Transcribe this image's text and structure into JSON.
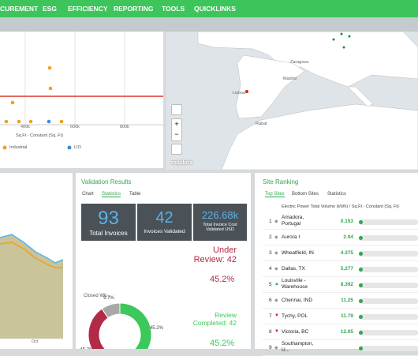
{
  "nav": {
    "items": [
      "CUREMENT",
      "ESG",
      "EFFICIENCY",
      "REPORTING",
      "TOOLS",
      "QUICKLINKS"
    ]
  },
  "scatter_panel": {
    "x_ticks": [
      "400k",
      "600k",
      "800k"
    ],
    "x_axis_label": "Sq.Ft - Constant (Sq. Ft)",
    "legend": [
      "Industrial",
      "LIO"
    ]
  },
  "map": {
    "places": [
      "Zaragoza",
      "Madrid",
      "Lisboa",
      "Rabat"
    ],
    "zoom_in": "+",
    "zoom_out": "−",
    "attribution": "mapbox"
  },
  "area_panel": {
    "x_label": "Oct"
  },
  "validation": {
    "title": "Validation Results",
    "tabs": [
      "Chart",
      "Statistics",
      "Table"
    ],
    "tiles": [
      {
        "value": 93,
        "label": "Total Invoices"
      },
      {
        "value": 42,
        "label": "Invoices Validated"
      },
      {
        "value": "226.68k",
        "label": "Total Invoice Cost Validated USD"
      }
    ],
    "under_review": "Under Review: 42",
    "under_review_pct": "45.2%",
    "review_completed": "Review Completed: 42",
    "review_completed_pct": "45.2%",
    "donut_legend": "Closed Wit...",
    "donut": [
      {
        "value": 45.2,
        "label": "45.2%",
        "color": "#3cc85a"
      },
      {
        "value": 45.2,
        "label": "45.2%",
        "color": "#b22a45"
      },
      {
        "value": 9.7,
        "label": "9.7%",
        "color": "#a8a8a8"
      }
    ]
  },
  "ranking": {
    "title": "Site Ranking",
    "tabs": [
      "Top Sites",
      "Bottom Sites",
      "Statistics"
    ],
    "header": "Electric Power Total Volume (kWh) / Sq.Ft - Constant (Sq. Ft)",
    "rows": [
      {
        "rank": 1,
        "name": "Amadora, Portugal",
        "value": 0.153,
        "trend": "same"
      },
      {
        "rank": 2,
        "name": "Aurora I",
        "value": 2.94,
        "trend": "same"
      },
      {
        "rank": 3,
        "name": "Wheatfield, IN",
        "value": 4.375,
        "trend": "same"
      },
      {
        "rank": 4,
        "name": "Dallas, TX",
        "value": 5.277,
        "trend": "same"
      },
      {
        "rank": 5,
        "name": "Louisville - Warehouse",
        "value": 8.392,
        "trend": "up"
      },
      {
        "rank": 6,
        "name": "Chennai, IND",
        "value": 11.25,
        "trend": "same"
      },
      {
        "rank": 7,
        "name": "Tychy, POL",
        "value": 11.79,
        "trend": "down"
      },
      {
        "rank": 8,
        "name": "Victoria, BC",
        "value": 12.05,
        "trend": "down"
      },
      {
        "rank": 9,
        "name": "Southampton, U...",
        "value": null,
        "trend": "same"
      }
    ]
  }
}
